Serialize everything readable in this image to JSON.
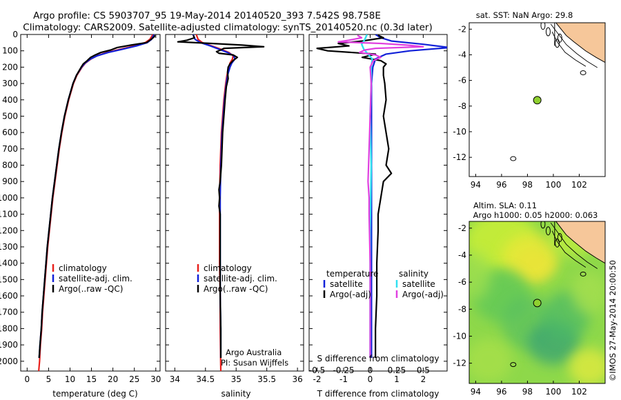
{
  "header": {
    "line1": "Argo profile: CS 5903707_95 19-May-2014 20140520_393 7.542S 98.758E",
    "line2": "Climatology: CARS2009. Satellite-adjusted climatology: synTS_20140520.nc (0.3d later)"
  },
  "colors": {
    "climatology": "#e8201c",
    "satellite": "#1020d8",
    "argo": "#000000",
    "satellite_salinity": "#30e0f0",
    "argo_adj_salinity": "#e040e0",
    "land": "#f6c79a",
    "float_marker": "#8fd030"
  },
  "chart_data": [
    {
      "id": "temperature",
      "type": "line",
      "xlabel": "temperature (deg C)",
      "ylabel": "",
      "xlim": [
        -1.5,
        31
      ],
      "ylim": [
        2060,
        0
      ],
      "xticks": [
        "0",
        "5",
        "10",
        "15",
        "20",
        "25",
        "30"
      ],
      "xtick_values": [
        0,
        5,
        10,
        15,
        20,
        25,
        30
      ],
      "yticks": [
        "0",
        "100",
        "200",
        "300",
        "400",
        "500",
        "600",
        "700",
        "800",
        "900",
        "1000",
        "1100",
        "1200",
        "1300",
        "1400",
        "1500",
        "1600",
        "1700",
        "1800",
        "1900",
        "2000"
      ],
      "ytick_values": [
        0,
        100,
        200,
        300,
        400,
        500,
        600,
        700,
        800,
        900,
        1000,
        1100,
        1200,
        1300,
        1400,
        1500,
        1600,
        1700,
        1800,
        1900,
        2000
      ],
      "legend": [
        "climatology",
        "satellite-adj. clim.",
        "Argo(..raw -QC)"
      ],
      "legend_position": "lower-middle",
      "series": [
        {
          "name": "climatology",
          "color_key": "climatology",
          "depth": [
            0,
            10,
            30,
            50,
            70,
            90,
            110,
            130,
            150,
            175,
            200,
            250,
            300,
            400,
            500,
            600,
            700,
            800,
            900,
            1000,
            1100,
            1200,
            1300,
            1400,
            1500,
            1600,
            1700,
            1800,
            1900,
            2000,
            2060
          ],
          "values": [
            29.3,
            29.1,
            28.6,
            27.5,
            25,
            21.8,
            18.6,
            16.3,
            14.9,
            13.6,
            12.8,
            11.6,
            10.8,
            9.7,
            8.8,
            8.1,
            7.5,
            7,
            6.5,
            6,
            5.6,
            5.2,
            4.8,
            4.5,
            4.2,
            3.9,
            3.6,
            3.4,
            3.1,
            2.9,
            2.7
          ]
        },
        {
          "name": "satellite-adj. clim.",
          "color_key": "satellite",
          "depth": [
            0,
            10,
            30,
            50,
            70,
            90,
            110,
            130,
            150,
            175,
            200,
            250,
            300,
            400,
            500,
            600,
            700,
            800,
            900,
            1000,
            1100,
            1200,
            1300,
            1400,
            1500,
            1600,
            1700,
            1800,
            1900,
            1980
          ],
          "values": [
            29.6,
            29.4,
            29,
            28,
            25.5,
            22.3,
            18.9,
            16.4,
            14.8,
            13.5,
            12.7,
            11.5,
            10.7,
            9.6,
            8.7,
            8,
            7.4,
            6.9,
            6.4,
            5.9,
            5.5,
            5.1,
            4.7,
            4.4,
            4.1,
            3.8,
            3.5,
            3.3,
            3,
            2.8
          ]
        },
        {
          "name": "Argo(..raw -QC)",
          "color_key": "argo",
          "depth": [
            5,
            15,
            30,
            50,
            65,
            80,
            95,
            110,
            125,
            140,
            160,
            180,
            200,
            250,
            300,
            400,
            500,
            600,
            700,
            800,
            900,
            1000,
            1100,
            1200,
            1300,
            1400,
            1500,
            1600,
            1700,
            1800,
            1900,
            1980
          ],
          "values": [
            29.8,
            29.6,
            28.9,
            27.8,
            24.2,
            21,
            19.5,
            17.2,
            15.9,
            14.8,
            14,
            13.1,
            12.6,
            11.5,
            10.7,
            9.6,
            8.7,
            8,
            7.4,
            6.9,
            6.4,
            5.9,
            5.5,
            5.1,
            4.7,
            4.4,
            4.1,
            3.8,
            3.5,
            3.3,
            3,
            2.8
          ]
        }
      ]
    },
    {
      "id": "salinity",
      "type": "line",
      "xlabel": "salinity",
      "ylabel": "",
      "xlim": [
        33.85,
        36.1
      ],
      "ylim": [
        2060,
        0
      ],
      "xticks": [
        "34",
        "34.5",
        "35",
        "35.5",
        "36"
      ],
      "xtick_values": [
        34,
        34.5,
        35,
        35.5,
        36
      ],
      "legend": [
        "climatology",
        "satellite-adj. clim.",
        "Argo(..raw -QC)"
      ],
      "legend_position": "lower-middle",
      "annotations": [
        "Argo Australia",
        "PI: Susan Wijffels"
      ],
      "series": [
        {
          "name": "climatology",
          "color_key": "climatology",
          "depth": [
            0,
            30,
            50,
            70,
            90,
            110,
            130,
            150,
            175,
            200,
            250,
            300,
            400,
            500,
            600,
            800,
            1000,
            1200,
            1400,
            1600,
            1800,
            2060
          ],
          "values": [
            34.35,
            34.38,
            34.45,
            34.6,
            34.75,
            34.88,
            34.95,
            34.94,
            34.9,
            34.88,
            34.85,
            34.83,
            34.8,
            34.78,
            34.76,
            34.74,
            34.73,
            34.73,
            34.73,
            34.74,
            34.74,
            34.75
          ]
        },
        {
          "name": "satellite-adj. clim.",
          "color_key": "satellite",
          "depth": [
            0,
            30,
            50,
            70,
            90,
            110,
            130,
            150,
            175,
            200,
            250,
            300,
            400,
            500,
            600,
            800,
            1000,
            1200,
            1400,
            1600,
            1800,
            1980
          ],
          "values": [
            34.3,
            34.33,
            34.42,
            34.58,
            34.72,
            34.86,
            34.96,
            34.98,
            34.93,
            34.9,
            34.86,
            34.84,
            34.81,
            34.79,
            34.77,
            34.75,
            34.74,
            34.74,
            34.74,
            34.74,
            34.75,
            34.75
          ]
        },
        {
          "name": "Argo(..raw -QC)",
          "color_key": "argo",
          "depth": [
            5,
            20,
            35,
            45,
            55,
            65,
            75,
            85,
            95,
            105,
            115,
            125,
            140,
            160,
            180,
            200,
            230,
            270,
            320,
            400,
            500,
            600,
            700,
            800,
            900,
            950,
            1000,
            1050,
            1100,
            1200,
            1400,
            1600,
            1800,
            1980
          ],
          "values": [
            34.3,
            34.32,
            34.2,
            34.05,
            34.6,
            35.1,
            35.45,
            34.8,
            34.75,
            34.68,
            34.72,
            34.95,
            35.02,
            34.95,
            34.9,
            34.87,
            34.86,
            34.87,
            34.84,
            34.82,
            34.8,
            34.78,
            34.77,
            34.76,
            34.74,
            34.72,
            34.73,
            34.72,
            34.74,
            34.74,
            34.74,
            34.74,
            34.75,
            34.75
          ]
        }
      ]
    },
    {
      "id": "difference",
      "type": "line",
      "xlabel": "T difference from climatology",
      "xlabel_top": "S difference from climatology",
      "xlim": [
        -2.3,
        2.9
      ],
      "ylim": [
        2060,
        0
      ],
      "xticks": [
        "-2",
        "-1",
        "0",
        "1",
        "2"
      ],
      "xtick_values": [
        -2,
        -1,
        0,
        1,
        2
      ],
      "top_xticks": [
        "-0.5",
        "-0.25",
        "0",
        "0.25",
        "0.5"
      ],
      "top_xtick_values": [
        -0.5,
        -0.25,
        0,
        0.25,
        0.5
      ],
      "legend_groups": [
        {
          "title": "temperature",
          "items": [
            "satellite",
            "Argo(-adj)"
          ]
        },
        {
          "title": "salinity",
          "items": [
            "satellite",
            "Argo(-adj)"
          ]
        }
      ],
      "legend_position": "lower-middle",
      "series": [
        {
          "name": "temperature satellite",
          "color_key": "satellite",
          "depth": [
            0,
            20,
            40,
            60,
            80,
            100,
            120,
            150,
            200,
            300,
            500,
            800,
            1200,
            1600,
            1980
          ],
          "values": [
            0.2,
            0.4,
            0.8,
            2.0,
            3.0,
            1.5,
            0.6,
            0.2,
            0.1,
            0.05,
            0.05,
            0.05,
            0.05,
            0.05,
            0.05
          ]
        },
        {
          "name": "temperature Argo(-adj)",
          "color_key": "argo",
          "depth": [
            5,
            20,
            40,
            55,
            70,
            85,
            100,
            120,
            140,
            160,
            180,
            200,
            250,
            300,
            400,
            500,
            600,
            700,
            800,
            850,
            900,
            1000,
            1100,
            1200,
            1400,
            1600,
            1800,
            1980
          ],
          "values": [
            0.3,
            0.5,
            -0.3,
            -1.2,
            -0.8,
            -2.0,
            -1.6,
            0.2,
            -0.3,
            0.4,
            0.6,
            0.5,
            0.5,
            0.55,
            0.6,
            0.5,
            0.6,
            0.7,
            0.6,
            0.8,
            0.5,
            0.4,
            0.3,
            0.3,
            0.25,
            0.25,
            0.2,
            0.2
          ]
        },
        {
          "name": "salinity satellite",
          "color_key": "satellite_salinity",
          "depth": [
            0,
            30,
            60,
            90,
            120,
            150,
            200,
            300,
            500,
            800,
            1200,
            1600,
            1980
          ],
          "values": [
            -0.03,
            -0.05,
            -0.08,
            -0.06,
            -0.02,
            0.02,
            0.01,
            0.01,
            0.0,
            0.01,
            0.0,
            0.0,
            0.0
          ]
        },
        {
          "name": "salinity Argo(-adj)",
          "color_key": "argo_adj_salinity",
          "depth": [
            5,
            20,
            35,
            45,
            55,
            65,
            75,
            85,
            95,
            110,
            125,
            140,
            160,
            200,
            300,
            500,
            700,
            900,
            1000,
            1100,
            1400,
            1700,
            1980
          ],
          "values": [
            -0.12,
            -0.08,
            -0.2,
            -0.3,
            0.1,
            0.35,
            0.5,
            0.05,
            -0.05,
            -0.1,
            0.05,
            0.1,
            0.03,
            0.0,
            0.01,
            0.0,
            -0.01,
            -0.02,
            -0.01,
            -0.01,
            0.0,
            0.0,
            0.0
          ]
        }
      ]
    },
    {
      "id": "sst_map",
      "type": "map",
      "title": "sat. SST: NaN Argo: 29.8",
      "xlim": [
        93.5,
        104
      ],
      "ylim": [
        -13.5,
        -1.5
      ],
      "xticks": [
        "94",
        "96",
        "98",
        "100",
        "102"
      ],
      "xtick_values": [
        94,
        96,
        98,
        100,
        102
      ],
      "yticks": [
        "-2",
        "-4",
        "-6",
        "-8",
        "-10",
        "-12"
      ],
      "ytick_values": [
        -2,
        -4,
        -6,
        -8,
        -10,
        -12
      ],
      "float_position": {
        "lon": 98.758,
        "lat": -7.542
      }
    },
    {
      "id": "sla_map",
      "type": "map",
      "title_line1": "Altim. SLA: 0.11",
      "title_line2": "Argo h1000: 0.05 h2000: 0.063",
      "xlim": [
        93.5,
        104
      ],
      "ylim": [
        -13.5,
        -1.5
      ],
      "xticks": [
        "94",
        "96",
        "98",
        "100",
        "102"
      ],
      "xtick_values": [
        94,
        96,
        98,
        100,
        102
      ],
      "yticks": [
        "-2",
        "-4",
        "-6",
        "-8",
        "-10",
        "-12"
      ],
      "ytick_values": [
        -2,
        -4,
        -6,
        -8,
        -10,
        -12
      ],
      "float_position": {
        "lon": 98.758,
        "lat": -7.542
      }
    }
  ],
  "footer": {
    "watermark": "©IMOS 27-May-2014 20:00:50"
  }
}
